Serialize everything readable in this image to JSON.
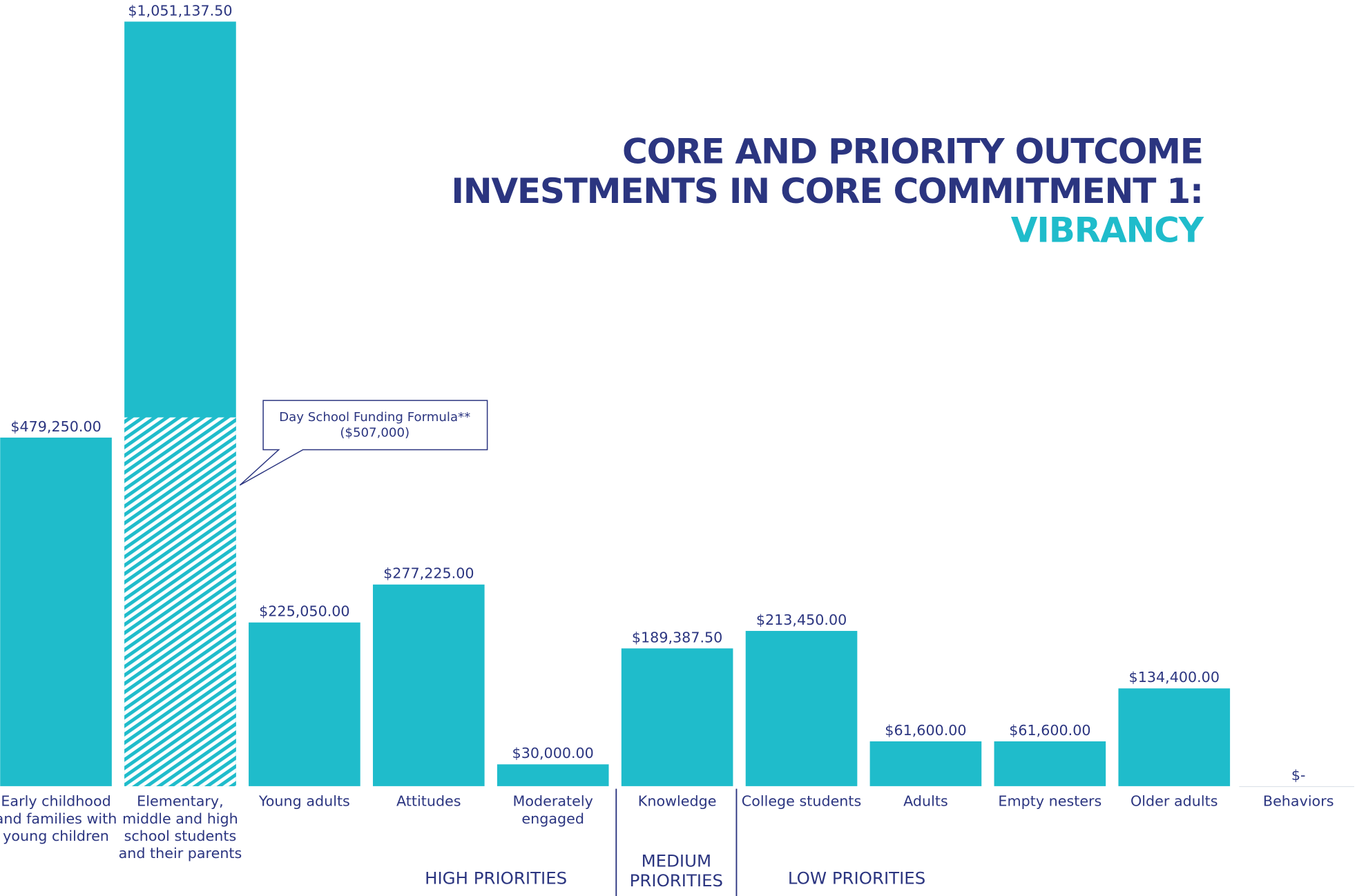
{
  "chart_data": {
    "type": "bar",
    "title_lines": [
      "CORE AND PRIORITY OUTCOME",
      "INVESTMENTS IN CORE COMMITMENT 1:"
    ],
    "title_highlight": "VIBRANCY",
    "color": "#1fbccb",
    "categories": [
      "Early childhood and families with young children",
      "Elementary, middle and high school students and their parents",
      "Young adults",
      "Attitudes",
      "Moderately engaged",
      "Knowledge",
      "College students",
      "Adults",
      "Empty nesters",
      "Older adults",
      "Behaviors"
    ],
    "values": [
      479250,
      1051137.5,
      225050,
      277225,
      30000,
      189387.5,
      213450,
      61600,
      61600,
      134400,
      0
    ],
    "value_labels": [
      "$479,250.00",
      "$1,051,137.50",
      "$225,050.00",
      "$277,225.00",
      "$30,000.00",
      "$189,387.50",
      "$213,450.00",
      "$61,600.00",
      "$61,600.00",
      "$134,400.00",
      "$-"
    ],
    "annotation": {
      "text": "Day School Funding Formula**",
      "value": 507000,
      "value_label": "($507,000)"
    },
    "groups": [
      "HIGH PRIORITIES",
      "MEDIUM PRIORITIES",
      "LOW PRIORITIES"
    ]
  }
}
